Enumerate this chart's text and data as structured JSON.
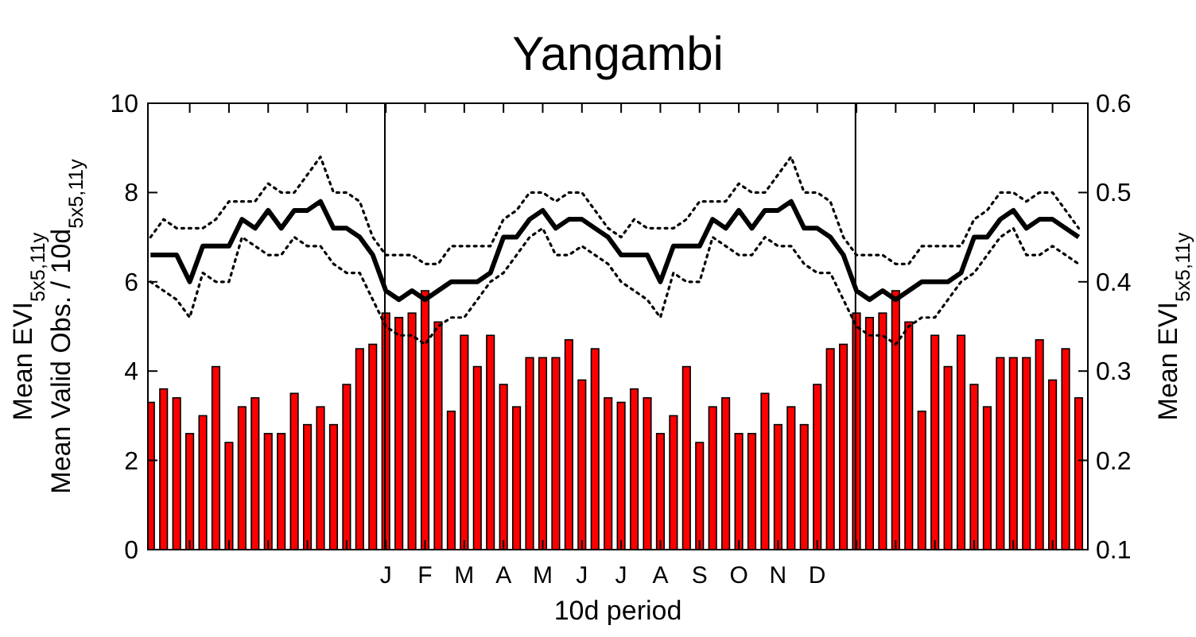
{
  "chart_data": {
    "type": "bar",
    "title": "Yangambi",
    "xlabel": "10d period",
    "ylabel": "Mean EVI$_{5x5,11y}$\nMean Valid Obs. / 10d$_{5x5,11y}$",
    "y2label": "Mean EVI$_{5x5,11y}$",
    "categories": [
      null,
      null,
      null,
      null,
      null,
      null,
      null,
      null,
      null,
      null,
      null,
      null,
      null,
      null,
      null,
      null,
      null,
      null,
      "J",
      null,
      null,
      "F",
      null,
      null,
      "M",
      null,
      null,
      "A",
      null,
      null,
      "M",
      null,
      null,
      "J",
      null,
      null,
      "J",
      null,
      null,
      "A",
      null,
      null,
      "S",
      null,
      null,
      "O",
      null,
      null,
      "N",
      null,
      null,
      "D",
      null,
      null,
      null,
      null,
      null,
      null,
      null,
      null,
      null,
      null,
      null,
      null,
      null,
      null,
      null,
      null,
      null,
      null,
      null,
      null
    ],
    "ylim": [
      0,
      10
    ],
    "yticks": [
      0,
      2,
      4,
      6,
      8,
      10
    ],
    "y2lim": [
      0.1,
      0.6
    ],
    "y2ticks": [
      0.1,
      0.2,
      0.3,
      0.4,
      0.5,
      0.6
    ],
    "series": [
      {
        "color": "#ff0000",
        "values": [
          3.3,
          3.6,
          3.4,
          2.6,
          3.0,
          4.1,
          2.4,
          3.2,
          3.4,
          2.6,
          2.6,
          3.5,
          2.8,
          3.2,
          2.8,
          3.7,
          4.5,
          4.6,
          5.3,
          5.2,
          5.3,
          5.8,
          5.1,
          3.1,
          4.8,
          4.1,
          4.8,
          3.7,
          3.2,
          4.3,
          4.3,
          4.3,
          4.7,
          3.8,
          4.5,
          3.4,
          3.3,
          3.6,
          3.4,
          2.6,
          3.0,
          4.1,
          2.4,
          3.2,
          3.4,
          2.6,
          2.6,
          3.5,
          2.8,
          3.2,
          2.8,
          3.7,
          4.5,
          4.6,
          5.3,
          5.2,
          5.3,
          5.8,
          5.1,
          3.1,
          4.8,
          4.1,
          4.8,
          3.7,
          3.2,
          4.3,
          4.3,
          4.3,
          4.7,
          3.8,
          4.5,
          3.4
        ]
      },
      {
        "type": "line",
        "axis": "y2",
        "color": "#000000",
        "line_style": "solid",
        "values": [
          0.43,
          0.43,
          0.43,
          0.4,
          0.44,
          0.44,
          0.44,
          0.47,
          0.46,
          0.48,
          0.46,
          0.48,
          0.48,
          0.49,
          0.46,
          0.46,
          0.45,
          0.43,
          0.39,
          0.38,
          0.39,
          0.38,
          0.39,
          0.4,
          0.4,
          0.4,
          0.41,
          0.45,
          0.45,
          0.47,
          0.48,
          0.46,
          0.47,
          0.47,
          0.46,
          0.45,
          0.43,
          0.43,
          0.43,
          0.4,
          0.44,
          0.44,
          0.44,
          0.47,
          0.46,
          0.48,
          0.46,
          0.48,
          0.48,
          0.49,
          0.46,
          0.46,
          0.45,
          0.43,
          0.39,
          0.38,
          0.39,
          0.38,
          0.39,
          0.4,
          0.4,
          0.4,
          0.41,
          0.45,
          0.45,
          0.47,
          0.48,
          0.46,
          0.47,
          0.47,
          0.46,
          0.45
        ]
      },
      {
        "type": "line",
        "axis": "y2",
        "color": "#000000",
        "line_style": "dotted",
        "values": [
          0.45,
          0.47,
          0.46,
          0.46,
          0.46,
          0.47,
          0.49,
          0.49,
          0.49,
          0.51,
          0.5,
          0.5,
          0.52,
          0.54,
          0.5,
          0.5,
          0.49,
          0.45,
          0.43,
          0.43,
          0.43,
          0.42,
          0.42,
          0.44,
          0.44,
          0.44,
          0.44,
          0.47,
          0.48,
          0.5,
          0.5,
          0.49,
          0.5,
          0.5,
          0.48,
          0.46,
          0.45,
          0.47,
          0.46,
          0.46,
          0.46,
          0.47,
          0.49,
          0.49,
          0.49,
          0.51,
          0.5,
          0.5,
          0.52,
          0.54,
          0.5,
          0.5,
          0.49,
          0.45,
          0.43,
          0.43,
          0.43,
          0.42,
          0.42,
          0.44,
          0.44,
          0.44,
          0.44,
          0.47,
          0.48,
          0.5,
          0.5,
          0.49,
          0.5,
          0.5,
          0.48,
          0.46
        ]
      },
      {
        "type": "line",
        "axis": "y2",
        "color": "#000000",
        "line_style": "dotted",
        "values": [
          0.4,
          0.39,
          0.38,
          0.36,
          0.41,
          0.4,
          0.4,
          0.45,
          0.44,
          0.43,
          0.43,
          0.45,
          0.44,
          0.44,
          0.42,
          0.41,
          0.41,
          0.38,
          0.35,
          0.34,
          0.34,
          0.33,
          0.35,
          0.36,
          0.36,
          0.38,
          0.4,
          0.41,
          0.43,
          0.45,
          0.46,
          0.43,
          0.43,
          0.44,
          0.43,
          0.42,
          0.4,
          0.39,
          0.38,
          0.36,
          0.41,
          0.4,
          0.4,
          0.45,
          0.44,
          0.43,
          0.43,
          0.45,
          0.44,
          0.44,
          0.42,
          0.41,
          0.41,
          0.38,
          0.35,
          0.34,
          0.34,
          0.33,
          0.35,
          0.36,
          0.36,
          0.38,
          0.4,
          0.41,
          0.43,
          0.45,
          0.46,
          0.43,
          0.43,
          0.44,
          0.43,
          0.42
        ]
      }
    ]
  }
}
